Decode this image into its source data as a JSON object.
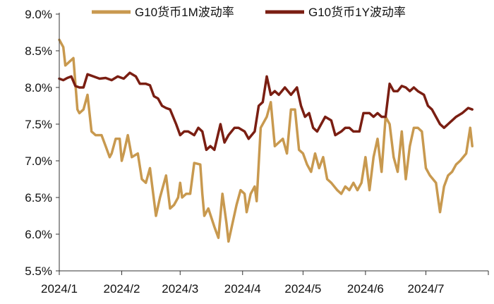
{
  "chart_data": {
    "type": "line",
    "title": "",
    "xlabel": "",
    "ylabel": "",
    "ylim": [
      5.5,
      9.0
    ],
    "y_tick_labels": [
      "5.5%",
      "6.0%",
      "6.5%",
      "7.0%",
      "7.5%",
      "8.0%",
      "8.5%",
      "9.0%"
    ],
    "y_tick_values": [
      5.5,
      6.0,
      6.5,
      7.0,
      7.5,
      8.0,
      8.5,
      9.0
    ],
    "x_tick_labels": [
      "2024/1",
      "2024/2",
      "2024/3",
      "2024/4",
      "2024/5",
      "2024/6",
      "2024/7"
    ],
    "x_tick_dates": [
      "2024-01-01",
      "2024-02-01",
      "2024-03-01",
      "2024-04-01",
      "2024-05-01",
      "2024-06-01",
      "2024-07-01"
    ],
    "xlim": [
      "2024-01-01",
      "2024-08-01"
    ],
    "grid": false,
    "legend_position": "top",
    "series": [
      {
        "name": "G10货币1M波动率",
        "color": "#C8994F",
        "points": [
          [
            "2024-01-01",
            8.65
          ],
          [
            "2024-01-03",
            8.55
          ],
          [
            "2024-01-04",
            8.3
          ],
          [
            "2024-01-06",
            8.35
          ],
          [
            "2024-01-08",
            8.4
          ],
          [
            "2024-01-10",
            7.7
          ],
          [
            "2024-01-11",
            7.65
          ],
          [
            "2024-01-13",
            7.7
          ],
          [
            "2024-01-15",
            7.9
          ],
          [
            "2024-01-17",
            7.4
          ],
          [
            "2024-01-19",
            7.35
          ],
          [
            "2024-01-22",
            7.35
          ],
          [
            "2024-01-24",
            7.2
          ],
          [
            "2024-01-26",
            7.05
          ],
          [
            "2024-01-27",
            7.1
          ],
          [
            "2024-01-29",
            7.3
          ],
          [
            "2024-01-31",
            7.3
          ],
          [
            "2024-02-01",
            7.0
          ],
          [
            "2024-02-02",
            7.1
          ],
          [
            "2024-02-04",
            7.35
          ],
          [
            "2024-02-06",
            7.05
          ],
          [
            "2024-02-09",
            7.1
          ],
          [
            "2024-02-11",
            6.75
          ],
          [
            "2024-02-13",
            6.7
          ],
          [
            "2024-02-15",
            6.9
          ],
          [
            "2024-02-18",
            6.25
          ],
          [
            "2024-02-20",
            6.5
          ],
          [
            "2024-02-23",
            6.8
          ],
          [
            "2024-02-25",
            6.35
          ],
          [
            "2024-02-27",
            6.4
          ],
          [
            "2024-02-29",
            6.5
          ],
          [
            "2024-03-01",
            6.7
          ],
          [
            "2024-03-02",
            6.5
          ],
          [
            "2024-03-04",
            6.55
          ],
          [
            "2024-03-06",
            6.55
          ],
          [
            "2024-03-08",
            6.97
          ],
          [
            "2024-03-11",
            6.95
          ],
          [
            "2024-03-12",
            6.55
          ],
          [
            "2024-03-13",
            6.25
          ],
          [
            "2024-03-15",
            6.35
          ],
          [
            "2024-03-18",
            6.1
          ],
          [
            "2024-03-20",
            5.95
          ],
          [
            "2024-03-22",
            6.55
          ],
          [
            "2024-03-24",
            6.15
          ],
          [
            "2024-03-25",
            5.9
          ],
          [
            "2024-03-27",
            6.15
          ],
          [
            "2024-03-29",
            6.4
          ],
          [
            "2024-03-31",
            6.6
          ],
          [
            "2024-04-02",
            6.55
          ],
          [
            "2024-04-03",
            6.3
          ],
          [
            "2024-04-05",
            6.55
          ],
          [
            "2024-04-07",
            6.65
          ],
          [
            "2024-04-08",
            6.45
          ],
          [
            "2024-04-10",
            7.45
          ],
          [
            "2024-04-13",
            7.6
          ],
          [
            "2024-04-15",
            7.8
          ],
          [
            "2024-04-17",
            7.2
          ],
          [
            "2024-04-19",
            7.25
          ],
          [
            "2024-04-21",
            7.3
          ],
          [
            "2024-04-23",
            7.1
          ],
          [
            "2024-04-25",
            7.7
          ],
          [
            "2024-04-27",
            7.7
          ],
          [
            "2024-04-29",
            7.15
          ],
          [
            "2024-05-01",
            7.1
          ],
          [
            "2024-05-03",
            6.95
          ],
          [
            "2024-05-05",
            6.85
          ],
          [
            "2024-05-07",
            7.1
          ],
          [
            "2024-05-09",
            6.9
          ],
          [
            "2024-05-11",
            7.05
          ],
          [
            "2024-05-13",
            6.75
          ],
          [
            "2024-05-15",
            6.7
          ],
          [
            "2024-05-18",
            6.6
          ],
          [
            "2024-05-20",
            6.55
          ],
          [
            "2024-05-22",
            6.65
          ],
          [
            "2024-05-24",
            6.6
          ],
          [
            "2024-05-26",
            6.7
          ],
          [
            "2024-05-28",
            6.6
          ],
          [
            "2024-05-30",
            6.7
          ],
          [
            "2024-06-01",
            7.05
          ],
          [
            "2024-06-03",
            6.6
          ],
          [
            "2024-06-05",
            7.05
          ],
          [
            "2024-06-07",
            7.3
          ],
          [
            "2024-06-09",
            6.85
          ],
          [
            "2024-06-11",
            7.6
          ],
          [
            "2024-06-13",
            7.5
          ],
          [
            "2024-06-15",
            7.05
          ],
          [
            "2024-06-17",
            6.85
          ],
          [
            "2024-06-19",
            7.4
          ],
          [
            "2024-06-21",
            6.75
          ],
          [
            "2024-06-23",
            7.2
          ],
          [
            "2024-06-25",
            7.45
          ],
          [
            "2024-06-27",
            7.45
          ],
          [
            "2024-06-29",
            7.4
          ],
          [
            "2024-07-01",
            6.9
          ],
          [
            "2024-07-03",
            6.8
          ],
          [
            "2024-07-06",
            6.7
          ],
          [
            "2024-07-08",
            6.3
          ],
          [
            "2024-07-10",
            6.65
          ],
          [
            "2024-07-12",
            6.8
          ],
          [
            "2024-07-14",
            6.85
          ],
          [
            "2024-07-16",
            6.95
          ],
          [
            "2024-07-18",
            7.0
          ],
          [
            "2024-07-21",
            7.1
          ],
          [
            "2024-07-23",
            7.45
          ],
          [
            "2024-07-24",
            7.2
          ]
        ]
      },
      {
        "name": "G10货币1Y波动率",
        "color": "#7A1E12",
        "points": [
          [
            "2024-01-01",
            8.12
          ],
          [
            "2024-01-03",
            8.1
          ],
          [
            "2024-01-05",
            8.13
          ],
          [
            "2024-01-07",
            8.15
          ],
          [
            "2024-01-09",
            8.02
          ],
          [
            "2024-01-11",
            8.0
          ],
          [
            "2024-01-13",
            8.0
          ],
          [
            "2024-01-15",
            8.18
          ],
          [
            "2024-01-18",
            8.15
          ],
          [
            "2024-01-21",
            8.12
          ],
          [
            "2024-01-24",
            8.13
          ],
          [
            "2024-01-27",
            8.1
          ],
          [
            "2024-01-30",
            8.15
          ],
          [
            "2024-02-02",
            8.12
          ],
          [
            "2024-02-05",
            8.2
          ],
          [
            "2024-02-08",
            8.15
          ],
          [
            "2024-02-10",
            8.05
          ],
          [
            "2024-02-13",
            8.05
          ],
          [
            "2024-02-15",
            8.03
          ],
          [
            "2024-02-17",
            7.88
          ],
          [
            "2024-02-19",
            7.85
          ],
          [
            "2024-02-21",
            7.75
          ],
          [
            "2024-02-23",
            7.72
          ],
          [
            "2024-02-25",
            7.7
          ],
          [
            "2024-02-28",
            7.5
          ],
          [
            "2024-03-01",
            7.35
          ],
          [
            "2024-03-03",
            7.4
          ],
          [
            "2024-03-05",
            7.4
          ],
          [
            "2024-03-08",
            7.35
          ],
          [
            "2024-03-10",
            7.45
          ],
          [
            "2024-03-12",
            7.4
          ],
          [
            "2024-03-14",
            7.15
          ],
          [
            "2024-03-16",
            7.2
          ],
          [
            "2024-03-18",
            7.15
          ],
          [
            "2024-03-21",
            7.5
          ],
          [
            "2024-03-23",
            7.25
          ],
          [
            "2024-03-25",
            7.35
          ],
          [
            "2024-03-28",
            7.45
          ],
          [
            "2024-03-30",
            7.45
          ],
          [
            "2024-04-02",
            7.4
          ],
          [
            "2024-04-04",
            7.3
          ],
          [
            "2024-04-07",
            7.4
          ],
          [
            "2024-04-09",
            7.75
          ],
          [
            "2024-04-11",
            7.8
          ],
          [
            "2024-04-13",
            8.15
          ],
          [
            "2024-04-15",
            7.9
          ],
          [
            "2024-04-17",
            7.95
          ],
          [
            "2024-04-19",
            7.9
          ],
          [
            "2024-04-22",
            8.0
          ],
          [
            "2024-04-25",
            7.9
          ],
          [
            "2024-04-28",
            8.0
          ],
          [
            "2024-04-30",
            7.75
          ],
          [
            "2024-05-02",
            7.6
          ],
          [
            "2024-05-04",
            7.65
          ],
          [
            "2024-05-06",
            7.45
          ],
          [
            "2024-05-08",
            7.4
          ],
          [
            "2024-05-10",
            7.5
          ],
          [
            "2024-05-12",
            7.6
          ],
          [
            "2024-05-15",
            7.55
          ],
          [
            "2024-05-17",
            7.35
          ],
          [
            "2024-05-20",
            7.4
          ],
          [
            "2024-05-22",
            7.45
          ],
          [
            "2024-05-24",
            7.45
          ],
          [
            "2024-05-26",
            7.4
          ],
          [
            "2024-05-29",
            7.4
          ],
          [
            "2024-05-31",
            7.65
          ],
          [
            "2024-06-03",
            7.65
          ],
          [
            "2024-06-05",
            7.6
          ],
          [
            "2024-06-07",
            7.65
          ],
          [
            "2024-06-09",
            7.6
          ],
          [
            "2024-06-11",
            7.6
          ],
          [
            "2024-06-13",
            8.05
          ],
          [
            "2024-06-15",
            7.95
          ],
          [
            "2024-06-17",
            7.95
          ],
          [
            "2024-06-19",
            8.02
          ],
          [
            "2024-06-21",
            8.0
          ],
          [
            "2024-06-23",
            7.95
          ],
          [
            "2024-06-25",
            8.0
          ],
          [
            "2024-06-27",
            7.95
          ],
          [
            "2024-06-30",
            7.9
          ],
          [
            "2024-07-02",
            7.75
          ],
          [
            "2024-07-04",
            7.7
          ],
          [
            "2024-07-06",
            7.6
          ],
          [
            "2024-07-08",
            7.5
          ],
          [
            "2024-07-10",
            7.45
          ],
          [
            "2024-07-12",
            7.5
          ],
          [
            "2024-07-14",
            7.55
          ],
          [
            "2024-07-16",
            7.6
          ],
          [
            "2024-07-19",
            7.65
          ],
          [
            "2024-07-22",
            7.72
          ],
          [
            "2024-07-24",
            7.7
          ]
        ]
      }
    ]
  }
}
